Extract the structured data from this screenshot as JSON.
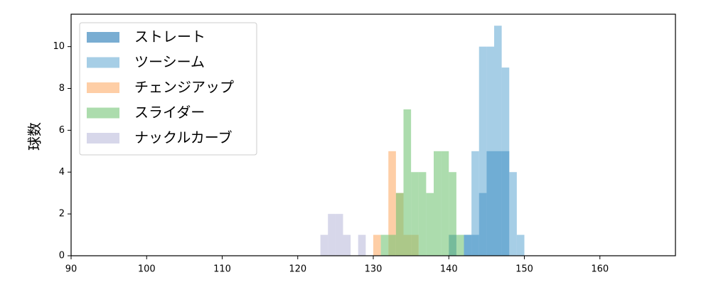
{
  "chart_data": {
    "type": "histogram",
    "y_label": "球数",
    "xlim": [
      90,
      170
    ],
    "ylim": [
      0,
      11.55
    ],
    "xticks": [
      90,
      100,
      110,
      120,
      130,
      140,
      150,
      160
    ],
    "yticks": [
      0,
      2,
      4,
      6,
      8,
      10
    ],
    "legend": "upper left",
    "series": [
      {
        "name": "ストレート",
        "color": "#1f77b4",
        "bins": [
          140,
          141,
          142,
          143,
          144,
          145,
          146,
          147,
          148
        ],
        "values": [
          1,
          0,
          1,
          1,
          3,
          5,
          5,
          5
        ]
      },
      {
        "name": "ツーシーム",
        "color": "#6baed6",
        "bins": [
          142,
          143,
          144,
          145,
          146,
          147,
          148,
          149,
          150
        ],
        "values": [
          1,
          5,
          10,
          10,
          11,
          9,
          4,
          1
        ]
      },
      {
        "name": "チェンジアップ",
        "color": "#fdae6b",
        "bins": [
          130,
          131,
          132,
          133,
          134,
          135,
          136
        ],
        "values": [
          1,
          0,
          5,
          3,
          1,
          1
        ]
      },
      {
        "name": "スライダー",
        "color": "#74c476",
        "bins": [
          131,
          132,
          133,
          134,
          135,
          136,
          137,
          138,
          139,
          140,
          141,
          142
        ],
        "values": [
          1,
          1,
          3,
          7,
          4,
          4,
          3,
          5,
          5,
          4,
          1
        ]
      },
      {
        "name": "ナックルカーブ",
        "color": "#bcbddc",
        "bins": [
          123,
          124,
          125,
          126,
          127,
          128,
          129
        ],
        "values": [
          1,
          2,
          2,
          1,
          0,
          1
        ]
      }
    ]
  }
}
